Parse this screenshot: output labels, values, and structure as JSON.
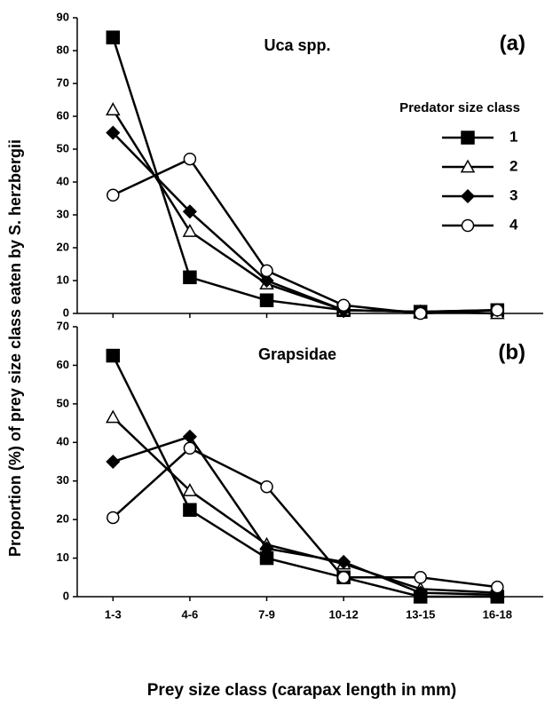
{
  "chart_data": [
    {
      "type": "line",
      "title": "Uca spp.",
      "panel_label": "(a)",
      "ylabel": "Proportion (%) of prey size class eaten by S. herzbergii",
      "legend_title": "Predator size class",
      "legend": true,
      "categories": [
        "1-3",
        "4-6",
        "7-9",
        "10-12",
        "13-15",
        "16-18"
      ],
      "ylim": [
        0,
        90
      ],
      "yticks": [
        0,
        10,
        20,
        30,
        40,
        50,
        60,
        70,
        80,
        90
      ],
      "series": [
        {
          "name": "1",
          "color": "#000000",
          "marker": "square",
          "fill": "#000000",
          "values": [
            84,
            11,
            4,
            1,
            0.5,
            1
          ]
        },
        {
          "name": "2",
          "color": "#000000",
          "marker": "triangle",
          "fill": "#ffffff",
          "values": [
            62,
            25,
            9,
            1,
            0.5,
            0
          ]
        },
        {
          "name": "3",
          "color": "#000000",
          "marker": "diamond",
          "fill": "#000000",
          "values": [
            55,
            31,
            10,
            1,
            0.5,
            1
          ]
        },
        {
          "name": "4",
          "color": "#000000",
          "marker": "circle",
          "fill": "#ffffff",
          "values": [
            36,
            47,
            13,
            2.5,
            0,
            1
          ]
        }
      ]
    },
    {
      "type": "line",
      "title": "Grapsidae",
      "panel_label": "(b)",
      "xlabel": "Prey size class (carapax length in mm)",
      "categories": [
        "1-3",
        "4-6",
        "7-9",
        "10-12",
        "13-15",
        "16-18"
      ],
      "ylim": [
        0,
        70
      ],
      "yticks": [
        0,
        10,
        20,
        30,
        40,
        50,
        60,
        70
      ],
      "series": [
        {
          "color": "#000000",
          "marker": "square",
          "fill": "#000000",
          "values": [
            62.5,
            22.5,
            10,
            5,
            0,
            0
          ]
        },
        {
          "color": "#000000",
          "marker": "triangle",
          "fill": "#ffffff",
          "values": [
            46.5,
            27.5,
            13.5,
            8.5,
            2,
            1
          ]
        },
        {
          "color": "#000000",
          "marker": "diamond",
          "fill": "#000000",
          "values": [
            35,
            41.5,
            12.5,
            9,
            1,
            0.5
          ]
        },
        {
          "color": "#000000",
          "marker": "circle",
          "fill": "#ffffff",
          "values": [
            20.5,
            38.5,
            28.5,
            5,
            5,
            2.5
          ]
        }
      ]
    }
  ]
}
